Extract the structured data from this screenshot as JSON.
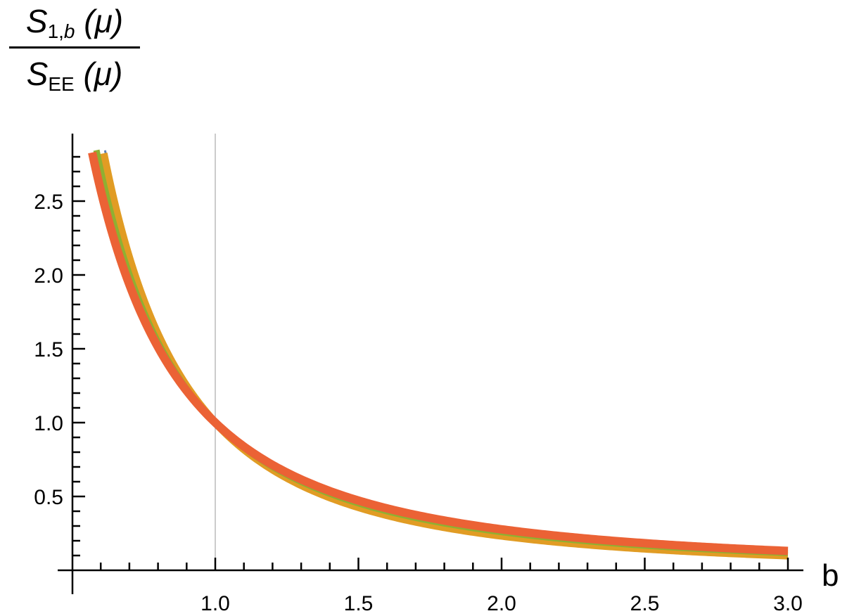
{
  "chart_data": {
    "type": "line",
    "ylabel": {
      "numerator": "S",
      "numerator_sub": "1,",
      "numerator_sub_var": "b",
      "numerator_arg": " (μ)",
      "denominator": "S",
      "denominator_sub": "EE",
      "denominator_arg": " (μ)"
    },
    "xlabel": "b",
    "xlim": [
      0.5,
      3.0
    ],
    "ylim": [
      0.0,
      2.85
    ],
    "xticks": [
      1.0,
      1.5,
      2.0,
      2.5,
      3.0
    ],
    "xtick_labels": [
      "1.0",
      "1.5",
      "2.0",
      "2.5",
      "3.0"
    ],
    "yticks": [
      0.5,
      1.0,
      1.5,
      2.0,
      2.5
    ],
    "ytick_labels": [
      "0.5",
      "1.0",
      "1.5",
      "2.0",
      "2.5"
    ],
    "vertical_line_x": 1.0,
    "grid": false,
    "series": [
      {
        "color": "#5E81B5",
        "exponent": 2.15,
        "x_start": 0.615,
        "stroke": 3
      },
      {
        "color": "#E19C24",
        "exponent": 2.1,
        "x_start": 0.61,
        "stroke": 11
      },
      {
        "color": "#8FB032",
        "exponent": 1.95,
        "x_start": 0.585,
        "stroke": 9
      },
      {
        "color": "#EB6235",
        "exponent": 1.85,
        "x_start": 0.57,
        "stroke": 12
      }
    ]
  }
}
